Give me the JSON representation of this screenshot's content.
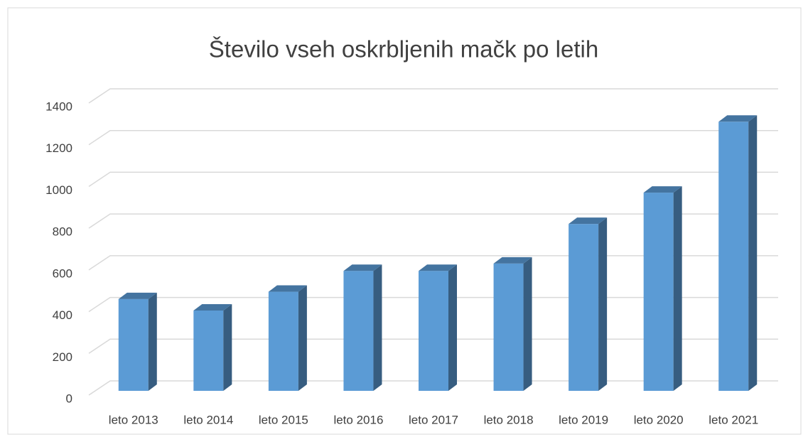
{
  "chart_data": {
    "type": "bar3d",
    "title": "Število vseh oskrbljenih mačk po letih",
    "categories": [
      "leto 2013",
      "leto 2014",
      "leto 2015",
      "leto 2016",
      "leto 2017",
      "leto 2018",
      "leto 2019",
      "leto 2020",
      "leto 2021"
    ],
    "values": [
      440,
      385,
      475,
      575,
      575,
      610,
      800,
      950,
      1290
    ],
    "color": "#5b9bd5",
    "ylim": [
      0,
      1400
    ],
    "yticks": [
      0,
      200,
      400,
      600,
      800,
      1000,
      1200,
      1400
    ],
    "grid": true
  }
}
